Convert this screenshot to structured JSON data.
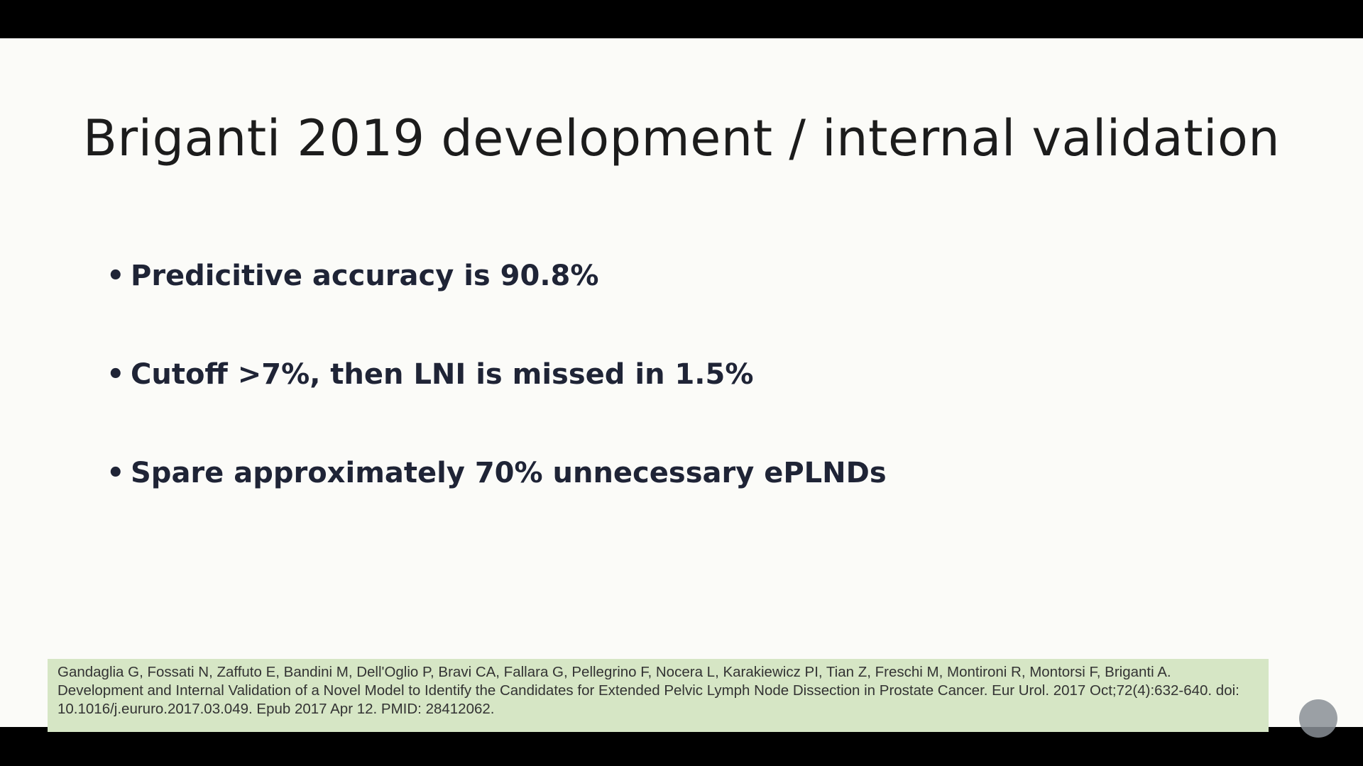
{
  "header": {
    "title": "Briganti 2019 development / internal validation"
  },
  "bullets": [
    "Predicitive accuracy is 90.8%",
    "Cutoff >7%, then LNI is missed in 1.5%",
    "Spare approximately 70% unnecessary ePLNDs"
  ],
  "citation": "Gandaglia G, Fossati N, Zaffuto E, Bandini M, Dell'Oglio P, Bravi CA, Fallara G, Pellegrino F, Nocera L, Karakiewicz PI, Tian Z, Freschi M, Montironi R, Montorsi F, Briganti A. Development and Internal Validation of a Novel Model to Identify the Candidates for Extended Pelvic Lymph Node Dissection in Prostate Cancer. Eur Urol. 2017 Oct;72(4):632-640. doi: 10.1016/j.eururo.2017.03.049. Epub 2017 Apr 12. PMID: 28412062."
}
